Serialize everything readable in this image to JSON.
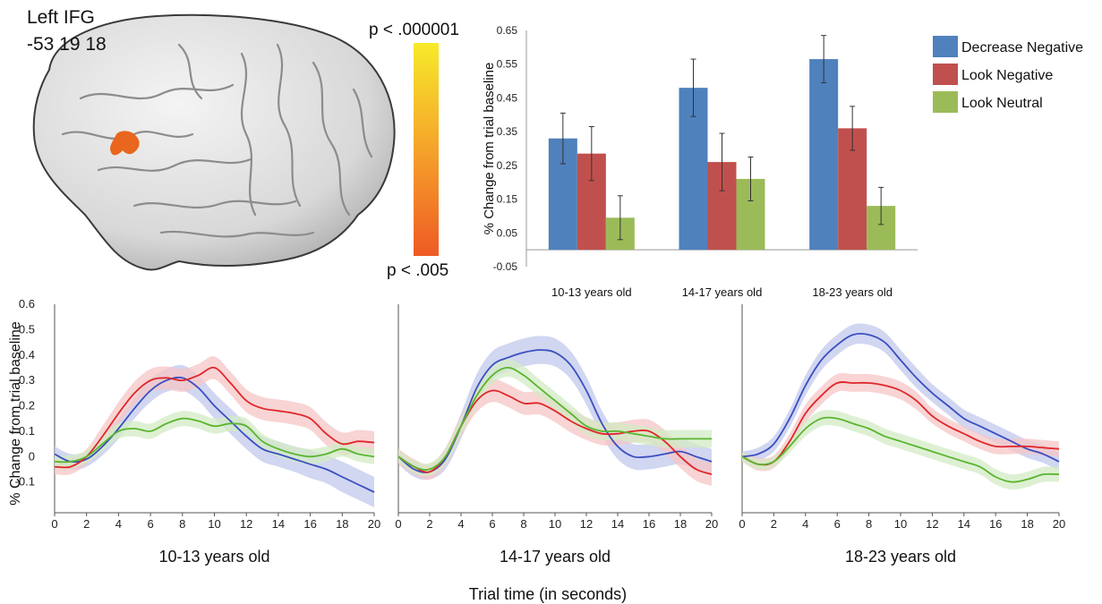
{
  "brain": {
    "region": "Left IFG",
    "coords": "-53 19 18",
    "colorbar_top": "p < .000001",
    "colorbar_bottom": "p < .005",
    "colorbar_colors": [
      "#f7ea2a",
      "#f5a32a",
      "#ee5a24"
    ],
    "activation_color": "#e8661d"
  },
  "chart_data": [
    {
      "type": "bar",
      "title": "",
      "xlabel": "",
      "ylabel": "% Change from trial baseline",
      "ylim": [
        -0.05,
        0.65
      ],
      "yticks": [
        "0.65",
        "0.55",
        "0.45",
        "0.35",
        "0.25",
        "0.15",
        "0.05",
        "-0.05"
      ],
      "categories": [
        "10-13 years old",
        "14-17 years old",
        "18-23 years old"
      ],
      "legend_position": "right",
      "series": [
        {
          "name": "Decrease Negative",
          "color": "#4f81bd",
          "values": [
            0.33,
            0.48,
            0.565
          ],
          "errors": [
            0.075,
            0.085,
            0.07
          ]
        },
        {
          "name": "Look Negative",
          "color": "#c0504d",
          "values": [
            0.285,
            0.26,
            0.36
          ],
          "errors": [
            0.08,
            0.085,
            0.065
          ]
        },
        {
          "name": "Look Neutral",
          "color": "#9bbb59",
          "values": [
            0.095,
            0.21,
            0.13
          ],
          "errors": [
            0.065,
            0.065,
            0.055
          ]
        }
      ]
    },
    {
      "type": "line",
      "title": "10-13 years old",
      "ylabel": "% Change from trial baseline",
      "xlabel": "Trial time (in seconds)",
      "ylim": [
        -0.2,
        0.6
      ],
      "xlim": [
        0,
        20
      ],
      "xticks": [
        "0",
        "2",
        "4",
        "6",
        "8",
        "10",
        "12",
        "14",
        "16",
        "18",
        "20"
      ],
      "yticks": [
        "0.6",
        "0.5",
        "0.4",
        "0.3",
        "0.2",
        "0.1",
        "0",
        "-0.1"
      ],
      "series": [
        {
          "name": "Decrease Negative",
          "color": "#3a4fc0",
          "band": "#c2c8ec",
          "x": [
            0,
            1,
            2,
            3,
            4,
            5,
            6,
            7,
            8,
            9,
            10,
            11,
            12,
            13,
            14,
            15,
            16,
            17,
            18,
            19,
            20
          ],
          "y": [
            0.01,
            -0.02,
            -0.01,
            0.04,
            0.11,
            0.19,
            0.26,
            0.3,
            0.31,
            0.27,
            0.2,
            0.14,
            0.08,
            0.03,
            0.01,
            -0.01,
            -0.03,
            -0.05,
            -0.08,
            -0.11,
            -0.14
          ],
          "err": [
            0.03,
            0.03,
            0.03,
            0.035,
            0.04,
            0.04,
            0.045,
            0.045,
            0.05,
            0.05,
            0.05,
            0.05,
            0.05,
            0.05,
            0.05,
            0.05,
            0.055,
            0.055,
            0.06,
            0.06,
            0.06
          ]
        },
        {
          "name": "Look Negative",
          "color": "#e0262a",
          "band": "#f5c6c6",
          "x": [
            0,
            1,
            2,
            3,
            4,
            5,
            6,
            7,
            8,
            9,
            10,
            11,
            12,
            13,
            14,
            15,
            16,
            17,
            18,
            19,
            20
          ],
          "y": [
            -0.04,
            -0.04,
            0.0,
            0.08,
            0.17,
            0.25,
            0.3,
            0.31,
            0.3,
            0.32,
            0.35,
            0.29,
            0.22,
            0.19,
            0.18,
            0.17,
            0.15,
            0.09,
            0.05,
            0.06,
            0.055
          ],
          "err": [
            0.03,
            0.03,
            0.03,
            0.04,
            0.045,
            0.045,
            0.045,
            0.045,
            0.045,
            0.045,
            0.045,
            0.045,
            0.045,
            0.045,
            0.045,
            0.045,
            0.045,
            0.045,
            0.045,
            0.045,
            0.045
          ]
        },
        {
          "name": "Look Neutral",
          "color": "#5ab52f",
          "band": "#d3ebc4",
          "x": [
            0,
            1,
            2,
            3,
            4,
            5,
            6,
            7,
            8,
            9,
            10,
            11,
            12,
            13,
            14,
            15,
            16,
            17,
            18,
            19,
            20
          ],
          "y": [
            -0.02,
            -0.02,
            0.0,
            0.05,
            0.1,
            0.11,
            0.1,
            0.13,
            0.15,
            0.14,
            0.12,
            0.13,
            0.12,
            0.06,
            0.03,
            0.01,
            0.0,
            0.01,
            0.03,
            0.01,
            0.0
          ],
          "err": [
            0.025,
            0.025,
            0.025,
            0.03,
            0.03,
            0.03,
            0.03,
            0.03,
            0.03,
            0.03,
            0.03,
            0.03,
            0.03,
            0.03,
            0.03,
            0.03,
            0.03,
            0.03,
            0.03,
            0.03,
            0.03
          ]
        }
      ]
    },
    {
      "type": "line",
      "title": "14-17 years old",
      "ylim": [
        -0.2,
        0.6
      ],
      "xlim": [
        0,
        20
      ],
      "xticks": [
        "0",
        "2",
        "4",
        "6",
        "8",
        "10",
        "12",
        "14",
        "16",
        "18",
        "20"
      ],
      "series": [
        {
          "name": "Decrease Negative",
          "color": "#3a4fc0",
          "band": "#c2c8ec",
          "x": [
            0,
            1,
            2,
            3,
            4,
            5,
            6,
            7,
            8,
            9,
            10,
            11,
            12,
            13,
            14,
            15,
            16,
            17,
            18,
            19,
            20
          ],
          "y": [
            0.0,
            -0.05,
            -0.06,
            -0.01,
            0.12,
            0.27,
            0.36,
            0.39,
            0.41,
            0.42,
            0.41,
            0.36,
            0.26,
            0.13,
            0.04,
            0.0,
            0.0,
            0.01,
            0.02,
            0.0,
            -0.02
          ],
          "err": [
            0.03,
            0.03,
            0.03,
            0.04,
            0.05,
            0.055,
            0.055,
            0.055,
            0.055,
            0.055,
            0.055,
            0.055,
            0.055,
            0.05,
            0.05,
            0.05,
            0.05,
            0.05,
            0.05,
            0.05,
            0.05
          ]
        },
        {
          "name": "Look Negative",
          "color": "#e0262a",
          "band": "#f5c6c6",
          "x": [
            0,
            1,
            2,
            3,
            4,
            5,
            6,
            7,
            8,
            9,
            10,
            11,
            12,
            13,
            14,
            15,
            16,
            17,
            18,
            19,
            20
          ],
          "y": [
            0.0,
            -0.04,
            -0.06,
            0.0,
            0.12,
            0.22,
            0.26,
            0.24,
            0.21,
            0.21,
            0.18,
            0.14,
            0.11,
            0.09,
            0.09,
            0.1,
            0.1,
            0.06,
            0.0,
            -0.05,
            -0.07
          ],
          "err": [
            0.03,
            0.03,
            0.03,
            0.035,
            0.04,
            0.045,
            0.045,
            0.045,
            0.045,
            0.045,
            0.045,
            0.045,
            0.045,
            0.045,
            0.045,
            0.045,
            0.045,
            0.045,
            0.045,
            0.045,
            0.045
          ]
        },
        {
          "name": "Look Neutral",
          "color": "#5ab52f",
          "band": "#d3ebc4",
          "x": [
            0,
            1,
            2,
            3,
            4,
            5,
            6,
            7,
            8,
            9,
            10,
            11,
            12,
            13,
            14,
            15,
            16,
            17,
            18,
            19,
            20
          ],
          "y": [
            0.0,
            -0.04,
            -0.05,
            0.0,
            0.12,
            0.24,
            0.32,
            0.35,
            0.32,
            0.27,
            0.22,
            0.17,
            0.12,
            0.1,
            0.1,
            0.09,
            0.08,
            0.07,
            0.07,
            0.07,
            0.07
          ],
          "err": [
            0.025,
            0.025,
            0.025,
            0.03,
            0.035,
            0.035,
            0.035,
            0.035,
            0.035,
            0.035,
            0.035,
            0.035,
            0.035,
            0.035,
            0.035,
            0.035,
            0.035,
            0.035,
            0.035,
            0.035,
            0.035
          ]
        }
      ]
    },
    {
      "type": "line",
      "title": "18-23 years old",
      "ylim": [
        -0.2,
        0.6
      ],
      "xlim": [
        0,
        20
      ],
      "xticks": [
        "0",
        "2",
        "4",
        "6",
        "8",
        "10",
        "12",
        "14",
        "16",
        "18",
        "20"
      ],
      "series": [
        {
          "name": "Decrease Negative",
          "color": "#3a4fc0",
          "band": "#c2c8ec",
          "x": [
            0,
            1,
            2,
            3,
            4,
            5,
            6,
            7,
            8,
            9,
            10,
            11,
            12,
            13,
            14,
            15,
            16,
            17,
            18,
            19,
            20
          ],
          "y": [
            0.0,
            0.01,
            0.05,
            0.15,
            0.28,
            0.38,
            0.44,
            0.48,
            0.48,
            0.45,
            0.38,
            0.31,
            0.25,
            0.2,
            0.15,
            0.12,
            0.09,
            0.06,
            0.03,
            0.01,
            -0.02
          ],
          "err": [
            0.02,
            0.025,
            0.03,
            0.035,
            0.04,
            0.04,
            0.04,
            0.04,
            0.04,
            0.04,
            0.04,
            0.04,
            0.035,
            0.035,
            0.035,
            0.035,
            0.035,
            0.035,
            0.035,
            0.035,
            0.035
          ]
        },
        {
          "name": "Look Negative",
          "color": "#e0262a",
          "band": "#f5c6c6",
          "x": [
            0,
            1,
            2,
            3,
            4,
            5,
            6,
            7,
            8,
            9,
            10,
            11,
            12,
            13,
            14,
            15,
            16,
            17,
            18,
            19,
            20
          ],
          "y": [
            0.0,
            -0.03,
            -0.02,
            0.06,
            0.17,
            0.24,
            0.29,
            0.29,
            0.29,
            0.28,
            0.26,
            0.22,
            0.16,
            0.12,
            0.09,
            0.06,
            0.04,
            0.04,
            0.04,
            0.035,
            0.03
          ],
          "err": [
            0.02,
            0.025,
            0.025,
            0.03,
            0.035,
            0.035,
            0.035,
            0.035,
            0.035,
            0.035,
            0.035,
            0.035,
            0.03,
            0.03,
            0.03,
            0.03,
            0.03,
            0.03,
            0.03,
            0.03,
            0.03
          ]
        },
        {
          "name": "Look Neutral",
          "color": "#5ab52f",
          "band": "#d3ebc4",
          "x": [
            0,
            1,
            2,
            3,
            4,
            5,
            6,
            7,
            8,
            9,
            10,
            11,
            12,
            13,
            14,
            15,
            16,
            17,
            18,
            19,
            20
          ],
          "y": [
            0.0,
            -0.03,
            -0.02,
            0.04,
            0.11,
            0.15,
            0.15,
            0.13,
            0.11,
            0.08,
            0.06,
            0.04,
            0.02,
            0.0,
            -0.02,
            -0.04,
            -0.08,
            -0.1,
            -0.09,
            -0.07,
            -0.07
          ],
          "err": [
            0.02,
            0.02,
            0.02,
            0.025,
            0.03,
            0.03,
            0.03,
            0.03,
            0.03,
            0.03,
            0.03,
            0.03,
            0.03,
            0.03,
            0.03,
            0.03,
            0.03,
            0.03,
            0.03,
            0.03,
            0.03
          ]
        }
      ]
    }
  ],
  "shared_xlabel": "Trial time (in seconds)"
}
